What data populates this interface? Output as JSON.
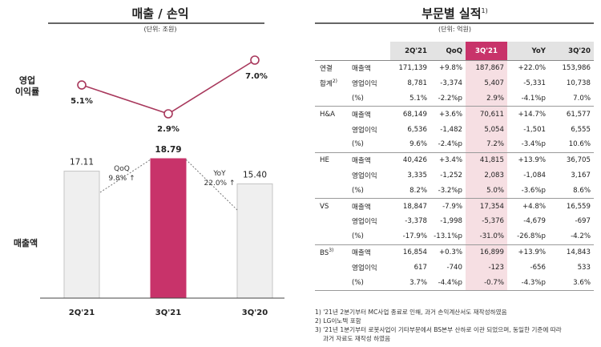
{
  "left": {
    "title": "매출 / 손익",
    "unit": "(단위: 조원)",
    "op_label_line1": "영업",
    "op_label_line2": "이익률",
    "sales_label": "매출액",
    "qoq_label": "QoQ",
    "qoq_value": "9.8% ↑",
    "yoy_label": "YoY",
    "yoy_value": "22.0% ↑"
  },
  "chart_data": [
    {
      "type": "line",
      "categories": [
        "2Q'21",
        "3Q'21",
        "3Q'20"
      ],
      "values": [
        5.1,
        2.9,
        7.0
      ],
      "value_labels": [
        "5.1%",
        "2.9%",
        "7.0%"
      ],
      "ylabel": "영업 이익률"
    },
    {
      "type": "bar",
      "categories": [
        "2Q'21",
        "3Q'21",
        "3Q'20"
      ],
      "values": [
        17.11,
        18.79,
        15.4
      ],
      "value_labels": [
        "17.11",
        "18.79",
        "15.40"
      ],
      "highlight_index": 1,
      "ylabel": "매출액",
      "colors": {
        "normal": "#efefef",
        "normal_border": "#c4c4c4",
        "highlight": "#c8336a"
      }
    },
    {
      "type": "table",
      "title": "부문별 실적",
      "title_sup": "1)",
      "unit": "(단위: 억원)",
      "columns": [
        "2Q'21",
        "QoQ",
        "3Q'21",
        "YoY",
        "3Q'20"
      ],
      "highlight_column": 2,
      "groups": [
        {
          "name": "연결",
          "name2": "합계",
          "name2_sup": "2)",
          "rows": [
            {
              "metric": "매출액",
              "cells": [
                "171,139",
                "+9.8%",
                "187,867",
                "+22.0%",
                "153,986"
              ]
            },
            {
              "metric": "영업이익",
              "cells": [
                "8,781",
                "-3,374",
                "5,407",
                "-5,331",
                "10,738"
              ]
            },
            {
              "metric": "(%)",
              "cells": [
                "5.1%",
                "-2.2%p",
                "2.9%",
                "-4.1%p",
                "7.0%"
              ]
            }
          ]
        },
        {
          "name": "H&A",
          "name2": "",
          "name2_sup": "",
          "rows": [
            {
              "metric": "매출액",
              "cells": [
                "68,149",
                "+3.6%",
                "70,611",
                "+14.7%",
                "61,577"
              ]
            },
            {
              "metric": "영업이익",
              "cells": [
                "6,536",
                "-1,482",
                "5,054",
                "-1,501",
                "6,555"
              ]
            },
            {
              "metric": "(%)",
              "cells": [
                "9.6%",
                "-2.4%p",
                "7.2%",
                "-3.4%p",
                "10.6%"
              ]
            }
          ]
        },
        {
          "name": "HE",
          "name2": "",
          "name2_sup": "",
          "rows": [
            {
              "metric": "매출액",
              "cells": [
                "40,426",
                "+3.4%",
                "41,815",
                "+13.9%",
                "36,705"
              ]
            },
            {
              "metric": "영업이익",
              "cells": [
                "3,335",
                "-1,252",
                "2,083",
                "-1,084",
                "3,167"
              ]
            },
            {
              "metric": "(%)",
              "cells": [
                "8.2%",
                "-3.2%p",
                "5.0%",
                "-3.6%p",
                "8.6%"
              ]
            }
          ]
        },
        {
          "name": "VS",
          "name2": "",
          "name2_sup": "",
          "rows": [
            {
              "metric": "매출액",
              "cells": [
                "18,847",
                "-7.9%",
                "17,354",
                "+4.8%",
                "16,559"
              ]
            },
            {
              "metric": "영업이익",
              "cells": [
                "-3,378",
                "-1,998",
                "-5,376",
                "-4,679",
                "-697"
              ]
            },
            {
              "metric": "(%)",
              "cells": [
                "-17.9%",
                "-13.1%p",
                "-31.0%",
                "-26.8%p",
                "-4.2%"
              ]
            }
          ]
        },
        {
          "name": "BS",
          "name_sup": "3)",
          "name2": "",
          "name2_sup": "",
          "rows": [
            {
              "metric": "매출액",
              "cells": [
                "16,854",
                "+0.3%",
                "16,899",
                "+13.9%",
                "14,843"
              ]
            },
            {
              "metric": "영업이익",
              "cells": [
                "617",
                "-740",
                "-123",
                "-656",
                "533"
              ]
            },
            {
              "metric": "(%)",
              "cells": [
                "3.7%",
                "-4.4%p",
                "-0.7%",
                "-4.3%p",
                "3.6%"
              ]
            }
          ]
        }
      ],
      "footnotes": [
        "1) '21년 2분기부터 MC사업 종료로 인해, 과거 손익계산서도 재작성하였음",
        "2) LG이노텍 포함",
        "3) '21년 1분기부터 로봇사업이 기타부문에서 BS본부 산하로 이관 되었으며, 동일한 기준에 따라",
        "과거 자료도 재작성 하였음"
      ]
    }
  ]
}
